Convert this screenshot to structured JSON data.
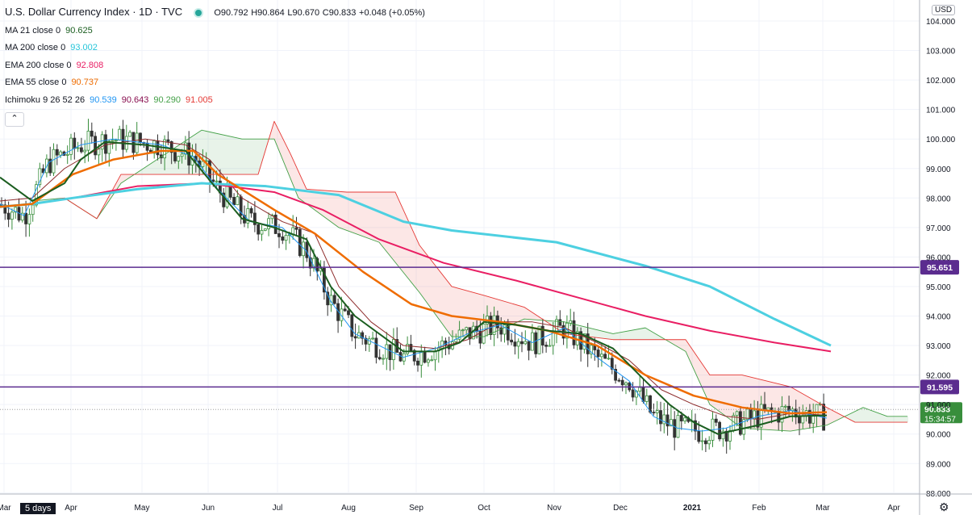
{
  "header": {
    "symbol_title": "U.S. Dollar Currency Index · 1D · TVC",
    "ohlc": {
      "o": "O90.792",
      "h": "H90.864",
      "l": "L90.670",
      "c": "C90.833",
      "chg": "+0.048 (+0.05%)"
    }
  },
  "indicators": [
    {
      "label": "MA 21 close 0",
      "values": [
        "90.625"
      ],
      "colors": [
        "#1b5e20"
      ]
    },
    {
      "label": "MA 200 close 0",
      "values": [
        "93.002"
      ],
      "colors": [
        "#26c6da"
      ]
    },
    {
      "label": "EMA 200 close 0",
      "values": [
        "92.808"
      ],
      "colors": [
        "#e91e63"
      ]
    },
    {
      "label": "EMA 55 close 0",
      "values": [
        "90.737"
      ],
      "colors": [
        "#ef6c00"
      ]
    },
    {
      "label": "Ichimoku 9 26 52 26",
      "values": [
        "90.539",
        "90.643",
        "90.290",
        "91.005"
      ],
      "colors": [
        "#2196f3",
        "#880e4f",
        "#43a047",
        "#e53935"
      ]
    }
  ],
  "currency": "USD",
  "timeframe_button": "5 days",
  "icons": {
    "collapse": "chevron-up-icon",
    "settings": "gear-icon",
    "status": "market-open-dot-icon"
  },
  "colors": {
    "ma21": "#1b5e20",
    "ma200": "#4dd0e1",
    "ema200": "#e91e63",
    "ema55": "#ef6c00",
    "tenkan": "#2196f3",
    "kijun": "#8d2b2b",
    "spanA": "#43a047",
    "spanB": "#e53935",
    "level": "#5b2c8f",
    "up": "#388e3c",
    "down": "#333333"
  },
  "chart_data": {
    "type": "line",
    "ylim": [
      88.0,
      104.35
    ],
    "y_ticks": [
      "104.000",
      "103.000",
      "102.000",
      "101.000",
      "100.000",
      "99.000",
      "98.000",
      "97.000",
      "96.000",
      "95.000",
      "94.000",
      "93.000",
      "92.000",
      "91.000",
      "90.000",
      "89.000",
      "88.000"
    ],
    "x_labels": [
      "Mar",
      "Apr",
      "May",
      "Jun",
      "Jul",
      "Aug",
      "Sep",
      "Oct",
      "Nov",
      "Dec",
      "2021",
      "Feb",
      "Mar",
      "Apr"
    ],
    "horizontal_levels": [
      {
        "value": 95.651,
        "label": "95.651"
      },
      {
        "value": 91.595,
        "label": "91.595"
      }
    ],
    "last_price": {
      "value": 90.833,
      "label": "90.833",
      "countdown": "15:34:57"
    },
    "series": [
      {
        "name": "EMA 200",
        "key": "ema200",
        "values": [
          [
            0,
            97.7
          ],
          [
            40,
            97.8
          ],
          [
            90,
            98.0
          ],
          [
            170,
            98.4
          ],
          [
            255,
            98.5
          ],
          [
            340,
            98.2
          ],
          [
            400,
            97.6
          ],
          [
            470,
            96.6
          ],
          [
            550,
            95.8
          ],
          [
            640,
            95.2
          ],
          [
            720,
            94.6
          ],
          [
            800,
            94.0
          ],
          [
            880,
            93.5
          ],
          [
            960,
            93.1
          ],
          [
            1030,
            92.8
          ]
        ]
      },
      {
        "name": "MA 200",
        "key": "ma200",
        "values": [
          [
            0,
            97.7
          ],
          [
            40,
            97.8
          ],
          [
            90,
            98.0
          ],
          [
            170,
            98.3
          ],
          [
            250,
            98.5
          ],
          [
            330,
            98.4
          ],
          [
            420,
            98.1
          ],
          [
            500,
            97.2
          ],
          [
            560,
            96.9
          ],
          [
            690,
            96.5
          ],
          [
            800,
            95.7
          ],
          [
            880,
            95.0
          ],
          [
            960,
            93.9
          ],
          [
            1030,
            93.0
          ]
        ]
      },
      {
        "name": "EMA 55",
        "key": "ema55",
        "values": [
          [
            0,
            97.7
          ],
          [
            40,
            97.8
          ],
          [
            90,
            98.8
          ],
          [
            140,
            99.3
          ],
          [
            200,
            99.6
          ],
          [
            240,
            99.6
          ],
          [
            270,
            98.8
          ],
          [
            340,
            97.6
          ],
          [
            390,
            96.8
          ],
          [
            450,
            95.5
          ],
          [
            510,
            94.4
          ],
          [
            560,
            94.0
          ],
          [
            620,
            93.8
          ],
          [
            680,
            93.5
          ],
          [
            740,
            93.0
          ],
          [
            800,
            92.0
          ],
          [
            860,
            91.3
          ],
          [
            920,
            90.9
          ],
          [
            980,
            90.7
          ],
          [
            1025,
            90.74
          ]
        ]
      },
      {
        "name": "MA 21",
        "key": "ma21",
        "values": [
          [
            0,
            98.7
          ],
          [
            40,
            97.9
          ],
          [
            80,
            98.5
          ],
          [
            100,
            99.3
          ],
          [
            130,
            99.9
          ],
          [
            180,
            99.8
          ],
          [
            230,
            99.6
          ],
          [
            260,
            98.6
          ],
          [
            300,
            97.3
          ],
          [
            340,
            97.0
          ],
          [
            380,
            96.6
          ],
          [
            410,
            95.0
          ],
          [
            440,
            94.0
          ],
          [
            470,
            93.4
          ],
          [
            500,
            92.8
          ],
          [
            540,
            92.8
          ],
          [
            570,
            93.1
          ],
          [
            600,
            93.8
          ],
          [
            640,
            93.7
          ],
          [
            680,
            93.5
          ],
          [
            720,
            93.4
          ],
          [
            760,
            92.9
          ],
          [
            800,
            91.8
          ],
          [
            830,
            91.0
          ],
          [
            860,
            90.4
          ],
          [
            890,
            90.0
          ],
          [
            940,
            90.3
          ],
          [
            980,
            90.6
          ],
          [
            1025,
            90.63
          ]
        ]
      },
      {
        "name": "Tenkan",
        "key": "tenkan",
        "values": [
          [
            0,
            97.8
          ],
          [
            30,
            97.4
          ],
          [
            60,
            99.2
          ],
          [
            100,
            99.8
          ],
          [
            140,
            100.0
          ],
          [
            200,
            99.8
          ],
          [
            240,
            99.4
          ],
          [
            270,
            98.3
          ],
          [
            310,
            97.2
          ],
          [
            350,
            97.0
          ],
          [
            380,
            96.2
          ],
          [
            410,
            94.5
          ],
          [
            440,
            93.4
          ],
          [
            470,
            93.0
          ],
          [
            500,
            92.6
          ],
          [
            540,
            92.9
          ],
          [
            580,
            93.4
          ],
          [
            620,
            93.7
          ],
          [
            660,
            93.1
          ],
          [
            700,
            93.6
          ],
          [
            740,
            92.6
          ],
          [
            780,
            91.8
          ],
          [
            810,
            90.6
          ],
          [
            840,
            90.2
          ],
          [
            870,
            90.1
          ],
          [
            900,
            90.2
          ],
          [
            940,
            90.6
          ],
          [
            980,
            90.8
          ],
          [
            1025,
            90.54
          ]
        ]
      },
      {
        "name": "Kijun",
        "key": "kijun",
        "values": [
          [
            0,
            97.9
          ],
          [
            40,
            98.0
          ],
          [
            80,
            99.0
          ],
          [
            130,
            99.8
          ],
          [
            180,
            100.0
          ],
          [
            230,
            99.8
          ],
          [
            260,
            99.3
          ],
          [
            300,
            98.0
          ],
          [
            350,
            97.2
          ],
          [
            390,
            96.8
          ],
          [
            420,
            95.0
          ],
          [
            460,
            93.8
          ],
          [
            500,
            93.0
          ],
          [
            540,
            92.9
          ],
          [
            580,
            93.2
          ],
          [
            620,
            93.8
          ],
          [
            660,
            93.8
          ],
          [
            700,
            93.6
          ],
          [
            740,
            93.1
          ],
          [
            780,
            92.5
          ],
          [
            820,
            91.5
          ],
          [
            860,
            91.0
          ],
          [
            900,
            90.6
          ],
          [
            940,
            90.5
          ],
          [
            980,
            90.7
          ],
          [
            1025,
            90.64
          ]
        ]
      },
      {
        "name": "Span A",
        "key": "spanA",
        "values": [
          [
            40,
            97.9
          ],
          [
            80,
            98.0
          ],
          [
            120,
            97.3
          ],
          [
            150,
            98.5
          ],
          [
            200,
            99.4
          ],
          [
            250,
            100.3
          ],
          [
            300,
            100.0
          ],
          [
            340,
            100.0
          ],
          [
            370,
            98.0
          ],
          [
            420,
            97.0
          ],
          [
            470,
            96.5
          ],
          [
            520,
            94.8
          ],
          [
            560,
            93.3
          ],
          [
            600,
            93.3
          ],
          [
            650,
            93.9
          ],
          [
            700,
            93.8
          ],
          [
            760,
            93.4
          ],
          [
            800,
            93.6
          ],
          [
            850,
            92.8
          ],
          [
            880,
            91.0
          ],
          [
            920,
            90.2
          ],
          [
            980,
            90.1
          ],
          [
            1025,
            90.3
          ],
          [
            1070,
            90.9
          ],
          [
            1100,
            90.6
          ],
          [
            1125,
            90.6
          ]
        ]
      },
      {
        "name": "Span B",
        "key": "spanB",
        "values": [
          [
            40,
            97.8
          ],
          [
            80,
            98.0
          ],
          [
            120,
            97.3
          ],
          [
            150,
            98.8
          ],
          [
            200,
            98.8
          ],
          [
            250,
            98.8
          ],
          [
            320,
            98.8
          ],
          [
            340,
            100.6
          ],
          [
            360,
            99.5
          ],
          [
            380,
            98.3
          ],
          [
            430,
            98.2
          ],
          [
            490,
            98.2
          ],
          [
            520,
            96.4
          ],
          [
            560,
            95.0
          ],
          [
            600,
            94.7
          ],
          [
            650,
            94.3
          ],
          [
            700,
            93.4
          ],
          [
            760,
            93.2
          ],
          [
            800,
            93.2
          ],
          [
            850,
            93.2
          ],
          [
            880,
            92.0
          ],
          [
            920,
            92.0
          ],
          [
            980,
            91.6
          ],
          [
            1025,
            90.9
          ],
          [
            1060,
            90.4
          ],
          [
            1125,
            90.4
          ]
        ]
      }
    ]
  }
}
